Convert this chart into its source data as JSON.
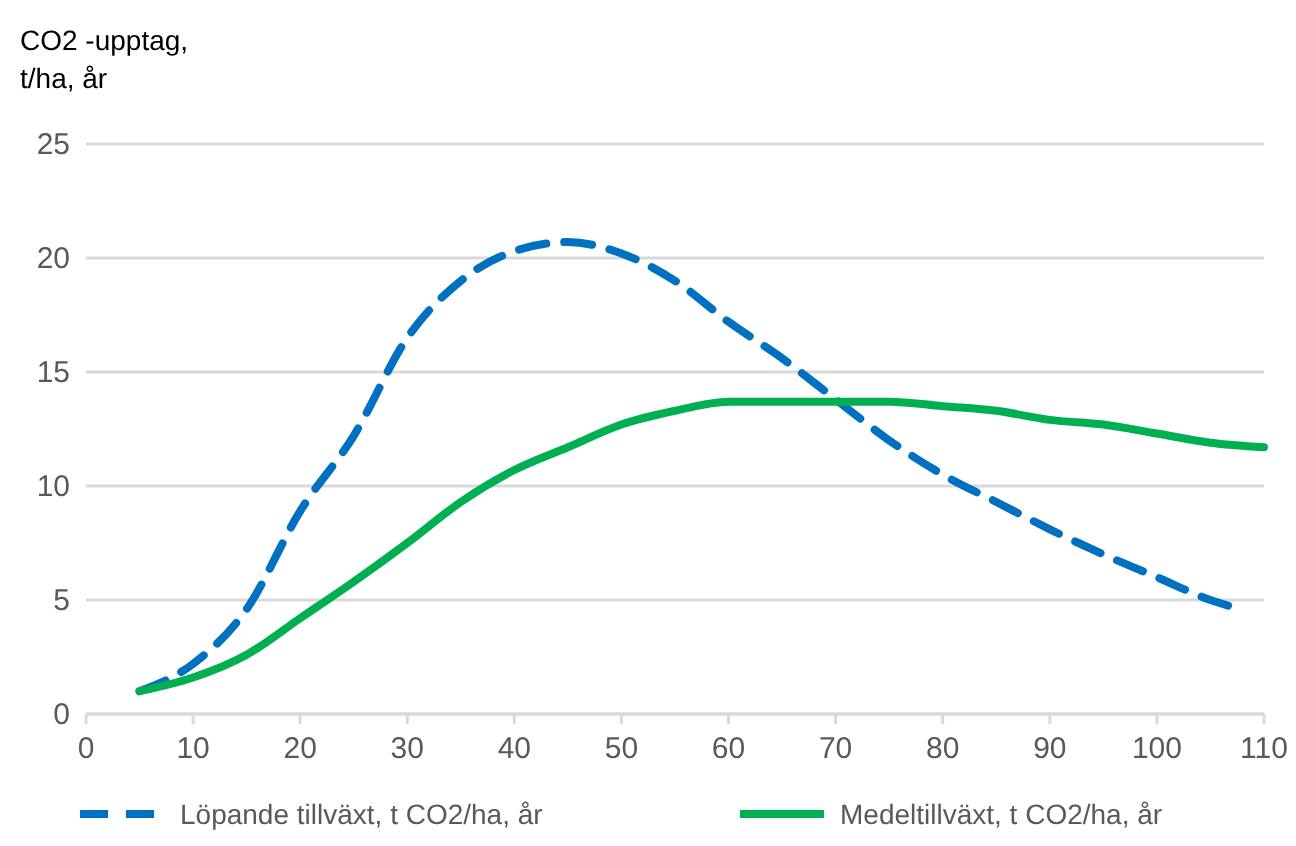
{
  "chart_data": {
    "type": "line",
    "ylabel": "CO2 -upptag,\nt/ha, år",
    "xlim": [
      0,
      110
    ],
    "xticks": [
      0,
      10,
      20,
      30,
      40,
      50,
      60,
      70,
      80,
      90,
      100,
      110
    ],
    "ylim": [
      0,
      25
    ],
    "yticks": [
      0,
      5,
      10,
      15,
      20,
      25
    ],
    "grid": "y",
    "legend": "bottom",
    "series": [
      {
        "name": "Löpande tillväxt, t CO2/ha, år",
        "color": "#0070c0",
        "line_style": "dashed",
        "x": [
          5,
          10,
          15,
          20,
          25,
          30,
          35,
          40,
          45,
          50,
          55,
          60,
          65,
          70,
          75,
          80,
          85,
          90,
          95,
          100,
          105,
          107
        ],
        "values": [
          1.0,
          2.2,
          4.6,
          8.9,
          12.2,
          16.5,
          19.0,
          20.3,
          20.7,
          20.2,
          19.0,
          17.2,
          15.6,
          13.8,
          12.0,
          10.5,
          9.3,
          8.1,
          7.0,
          6.0,
          5.0,
          4.7
        ]
      },
      {
        "name": "Medeltillväxt, t CO2/ha, år",
        "color": "#00b050",
        "line_style": "solid",
        "x": [
          5,
          10,
          15,
          20,
          25,
          30,
          35,
          40,
          45,
          50,
          55,
          60,
          65,
          70,
          75,
          80,
          85,
          90,
          95,
          100,
          105,
          110
        ],
        "values": [
          1.0,
          1.6,
          2.6,
          4.2,
          5.8,
          7.5,
          9.3,
          10.7,
          11.7,
          12.7,
          13.3,
          13.7,
          13.7,
          13.7,
          13.7,
          13.5,
          13.3,
          12.9,
          12.7,
          12.3,
          11.9,
          11.7
        ]
      }
    ]
  }
}
